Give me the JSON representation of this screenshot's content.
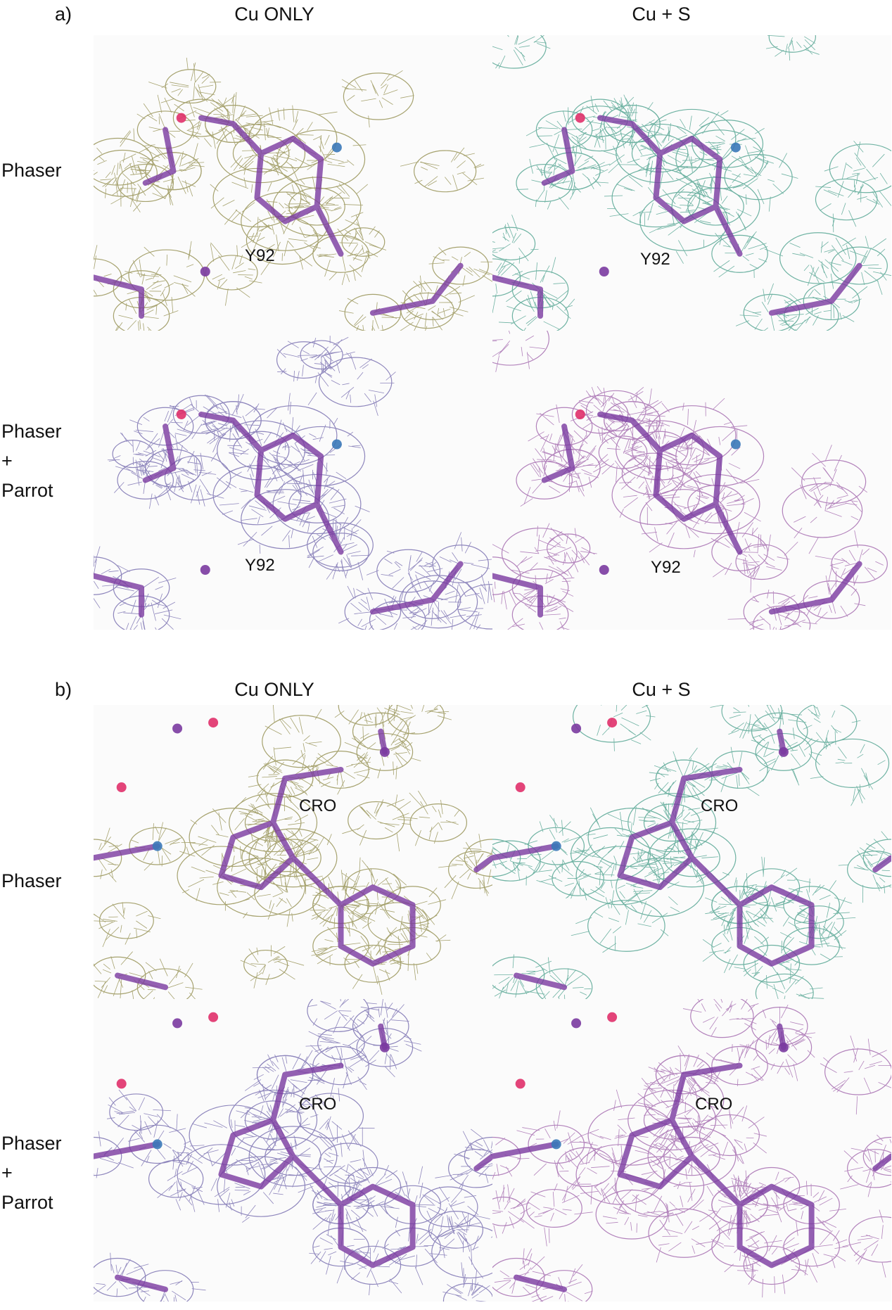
{
  "panel_a": {
    "letter": "a)",
    "columns": [
      "Cu ONLY",
      "Cu + S"
    ],
    "rows": {
      "phaser": "Phaser",
      "phaser_parrot": [
        "Phaser",
        "+",
        "Parrot"
      ]
    },
    "residue_label": "Y92"
  },
  "panel_b": {
    "letter": "b)",
    "columns": [
      "Cu ONLY",
      "Cu + S"
    ],
    "rows": {
      "phaser": "Phaser",
      "phaser_parrot": [
        "Phaser",
        "+",
        "Parrot"
      ]
    },
    "residue_label": "CRO"
  },
  "colors": {
    "mesh_cu_only_phaser": "#8a8540",
    "mesh_cu_s_phaser": "#3f9a85",
    "mesh_parrot_cu_only": "#6a5fa8",
    "mesh_parrot_cu_s": "#9a5aa6",
    "stick": "#7a3aa0",
    "oxygen": "#e0306a",
    "nitrogen": "#3a78b8"
  }
}
